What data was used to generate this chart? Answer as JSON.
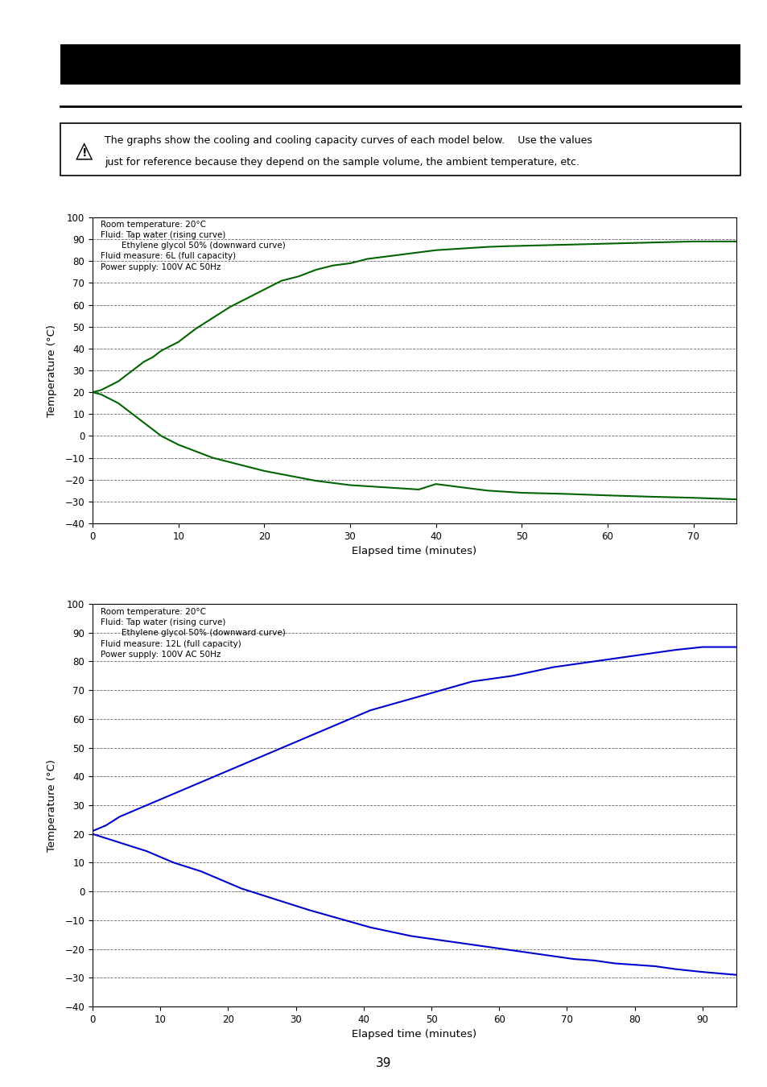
{
  "warning_line1": "The graphs show the cooling and cooling capacity curves of each model below.    Use the values",
  "warning_line2": "just for reference because they depend on the sample volume, the ambient temperature, etc.",
  "chart1": {
    "color": "#006400",
    "annotation_lines": [
      "Room temperature: 20°C",
      "Fluid: Tap water (rising curve)",
      "        Ethylene glycol 50% (downward curve)",
      "Fluid measure: 6L (full capacity)",
      "Power supply: 100V AC 50Hz"
    ],
    "xlabel": "Elapsed time (minutes)",
    "ylabel": "Temperature (°C)",
    "xlim": [
      0,
      75
    ],
    "ylim": [
      -40,
      100
    ],
    "xticks": [
      0,
      10,
      20,
      30,
      40,
      50,
      60,
      70
    ],
    "yticks": [
      -40,
      -30,
      -20,
      -10,
      0,
      10,
      20,
      30,
      40,
      50,
      60,
      70,
      80,
      90,
      100
    ],
    "rising_x": [
      0,
      1,
      2,
      3,
      4,
      5,
      6,
      7,
      8,
      9,
      10,
      12,
      14,
      16,
      18,
      20,
      22,
      24,
      26,
      28,
      30,
      32,
      34,
      36,
      38,
      40,
      42,
      44,
      46,
      48,
      50,
      55,
      60,
      65,
      70,
      75
    ],
    "rising_y": [
      20,
      21,
      23,
      25,
      28,
      31,
      34,
      36,
      39,
      41,
      43,
      49,
      54,
      59,
      63,
      67,
      71,
      73,
      76,
      78,
      79,
      81,
      82,
      83,
      84,
      85,
      85.5,
      86,
      86.5,
      86.8,
      87,
      87.5,
      88,
      88.5,
      89,
      89
    ],
    "cooling_x": [
      0,
      1,
      2,
      3,
      4,
      5,
      6,
      7,
      8,
      9,
      10,
      12,
      14,
      16,
      18,
      20,
      22,
      24,
      26,
      28,
      30,
      32,
      34,
      36,
      38,
      40,
      42,
      44,
      46,
      48,
      50,
      55,
      60,
      65,
      70,
      75
    ],
    "cooling_y": [
      20,
      19,
      17,
      15,
      12,
      9,
      6,
      3,
      0,
      -2,
      -4,
      -7,
      -10,
      -12,
      -14,
      -16,
      -17.5,
      -19,
      -20.5,
      -21.5,
      -22.5,
      -23,
      -23.5,
      -24,
      -24.5,
      -22,
      -23,
      -24,
      -25,
      -25.5,
      -26,
      -26.5,
      -27.2,
      -27.8,
      -28.3,
      -29
    ]
  },
  "chart2": {
    "color": "#0000CC",
    "annotation_lines": [
      "Room temperature: 20°C",
      "Fluid: Tap water (rising curve)",
      "        Ethylene glycol 50% (downward curve)",
      "Fluid measure: 12L (full capacity)",
      "Power supply: 100V AC 50Hz"
    ],
    "xlabel": "Elapsed time (minutes)",
    "ylabel": "Temperature (°C)",
    "xlim": [
      0,
      95
    ],
    "ylim": [
      -40,
      100
    ],
    "xticks": [
      0,
      10,
      20,
      30,
      40,
      50,
      60,
      70,
      80,
      90
    ],
    "yticks": [
      -40,
      -30,
      -20,
      -10,
      0,
      10,
      20,
      30,
      40,
      50,
      60,
      70,
      80,
      90,
      100
    ],
    "rising_x": [
      0,
      2,
      4,
      6,
      8,
      10,
      12,
      14,
      16,
      18,
      20,
      22,
      24,
      26,
      28,
      30,
      32,
      35,
      38,
      41,
      44,
      47,
      50,
      53,
      56,
      59,
      62,
      65,
      68,
      71,
      74,
      77,
      80,
      83,
      86,
      90,
      95
    ],
    "rising_y": [
      21,
      23,
      26,
      28,
      30,
      32,
      34,
      36,
      38,
      40,
      42,
      44,
      46,
      48,
      50,
      52,
      54,
      57,
      60,
      63,
      65,
      67,
      69,
      71,
      73,
      74,
      75,
      76.5,
      78,
      79,
      80,
      81,
      82,
      83,
      84,
      85,
      85
    ],
    "cooling_x": [
      0,
      2,
      4,
      6,
      8,
      10,
      12,
      14,
      16,
      18,
      20,
      22,
      24,
      26,
      28,
      30,
      32,
      35,
      38,
      41,
      44,
      47,
      50,
      53,
      56,
      59,
      62,
      65,
      68,
      71,
      74,
      77,
      80,
      83,
      86,
      90,
      95
    ],
    "cooling_y": [
      20,
      18.5,
      17,
      15.5,
      14,
      12,
      10,
      8.5,
      7,
      5,
      3,
      1,
      -0.5,
      -2,
      -3.5,
      -5,
      -6.5,
      -8.5,
      -10.5,
      -12.5,
      -14,
      -15.5,
      -16.5,
      -17.5,
      -18.5,
      -19.5,
      -20.5,
      -21.5,
      -22.5,
      -23.5,
      -24,
      -25,
      -25.5,
      -26,
      -27,
      -28,
      -29
    ]
  },
  "page_number": "39",
  "header_bg": "#000000"
}
